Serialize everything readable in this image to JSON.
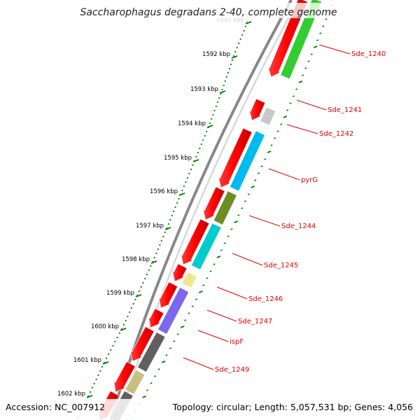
{
  "map": {
    "title": "Saccharophagus degradans 2-40, complete genome",
    "accession": "Accession: NC_007912",
    "summary": "Topology: circular; Length: 5,057,531 bp; Genes: 4,056",
    "colors": {
      "backbone": "#808080",
      "cds": "#ff0000",
      "tick": "#008000",
      "label": "#e00000"
    },
    "scale_labels": [
      "1591 kbp",
      "1592 kbp",
      "1593 kbp",
      "1594 kbp",
      "1595 kbp",
      "1596 kbp",
      "1597 kbp",
      "1598 kbp",
      "1599 kbp",
      "1600 kbp",
      "1601 kbp",
      "1602 kbp"
    ],
    "gene_labels": [
      "Sde_1240",
      "Sde_1241",
      "Sde_1242",
      "pyrG",
      "Sde_1244",
      "Sde_1245",
      "Sde_1246",
      "Sde_1247",
      "ispF",
      "Sde_1249"
    ],
    "feature_colors": [
      "#33cc33",
      "#c8c8c8",
      "#00bbee",
      "#6b8e23",
      "#00cccc",
      "#f0e68c",
      "#7b68ee",
      "#606060",
      "#c8c080",
      "#606060"
    ]
  }
}
